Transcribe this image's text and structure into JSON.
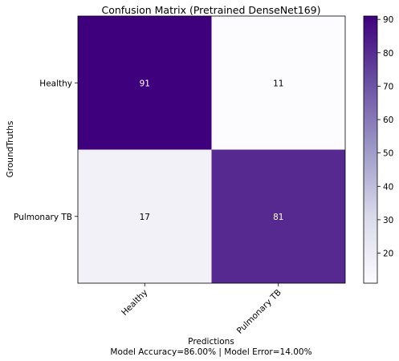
{
  "chart_data": {
    "type": "heatmap",
    "title": "Confusion Matrix (Pretrained DenseNet169)",
    "xlabel": "Predictions",
    "xlabel_sub": "Model Accuracy=86.00% | Model Error=14.00%",
    "ylabel": "GroundTruths",
    "x_categories": [
      "Healthy",
      "Pulmonary TB"
    ],
    "y_categories": [
      "Healthy",
      "Pulmonary TB"
    ],
    "values": [
      [
        91,
        11
      ],
      [
        17,
        81
      ]
    ],
    "colormap": "Purples",
    "color_range": [
      11,
      91
    ],
    "colorbar_ticks": [
      20,
      30,
      40,
      50,
      60,
      70,
      80,
      90
    ],
    "colors": {
      "low": "#fcfbfd",
      "mid_low": "#dadaeb",
      "mid": "#9e9ac8",
      "mid_high": "#6a51a3",
      "high": "#3f007d",
      "text_on_dark": "#ffffff",
      "text_on_light": "#000000"
    }
  }
}
